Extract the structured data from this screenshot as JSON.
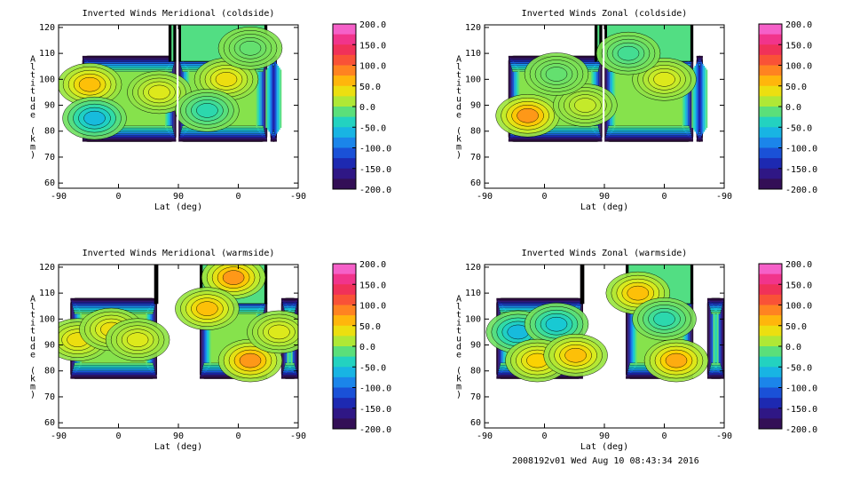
{
  "chart_data": [
    {
      "type": "heatmap",
      "title": "Inverted Winds Meridional (coldside)",
      "xlabel": "Lat (deg)",
      "ylabel": "Altitude (km)",
      "x_ticks": [
        "-90",
        "0",
        "90",
        "0",
        "-90"
      ],
      "y_ticks": [
        "60",
        "70",
        "80",
        "90",
        "100",
        "110",
        "120"
      ],
      "ylim": [
        58,
        121
      ],
      "colorbar_ticks": [
        "200.0",
        "150.0",
        "100.0",
        "50.0",
        "0.0",
        "-50.0",
        "-100.0",
        "-150.0",
        "-200.0"
      ],
      "color_range": [
        -200,
        200
      ],
      "data_extent": {
        "alt_min": 76,
        "alt_max": 109
      },
      "features": [
        {
          "lat_pos": 0.13,
          "alt": 98,
          "value": 60
        },
        {
          "lat_pos": 0.42,
          "alt": 95,
          "value": 30
        },
        {
          "lat_pos": 0.7,
          "alt": 100,
          "value": 40
        },
        {
          "lat_pos": 0.62,
          "alt": 88,
          "value": -30
        },
        {
          "lat_pos": 0.15,
          "alt": 85,
          "value": -60
        },
        {
          "lat_pos": 0.8,
          "alt": 112,
          "value": -10
        }
      ]
    },
    {
      "type": "heatmap",
      "title": "Inverted Winds Zonal (coldside)",
      "xlabel": "Lat (deg)",
      "ylabel": "Altitude (km)",
      "x_ticks": [
        "-90",
        "0",
        "90",
        "0",
        "-90"
      ],
      "y_ticks": [
        "60",
        "70",
        "80",
        "90",
        "100",
        "110",
        "120"
      ],
      "ylim": [
        58,
        121
      ],
      "colorbar_ticks": [
        "200.0",
        "150.0",
        "100.0",
        "50.0",
        "0.0",
        "-50.0",
        "-100.0",
        "-150.0",
        "-200.0"
      ],
      "color_range": [
        -200,
        200
      ],
      "data_extent": {
        "alt_min": 76,
        "alt_max": 109
      },
      "features": [
        {
          "lat_pos": 0.18,
          "alt": 86,
          "value": 80
        },
        {
          "lat_pos": 0.42,
          "alt": 90,
          "value": 20
        },
        {
          "lat_pos": 0.75,
          "alt": 100,
          "value": 30
        },
        {
          "lat_pos": 0.3,
          "alt": 102,
          "value": -10
        },
        {
          "lat_pos": 0.6,
          "alt": 110,
          "value": -20
        }
      ]
    },
    {
      "type": "heatmap",
      "title": "Inverted Winds Meridional (warmside)",
      "xlabel": "Lat (deg)",
      "ylabel": "Altitude (km)",
      "x_ticks": [
        "-90",
        "0",
        "90",
        "0",
        "-90"
      ],
      "y_ticks": [
        "60",
        "70",
        "80",
        "90",
        "100",
        "110",
        "120"
      ],
      "ylim": [
        58,
        121
      ],
      "colorbar_ticks": [
        "200.0",
        "150.0",
        "100.0",
        "50.0",
        "0.0",
        "-50.0",
        "-100.0",
        "-150.0",
        "-200.0"
      ],
      "color_range": [
        -200,
        200
      ],
      "data_extent": {
        "alt_min": 77,
        "alt_max": 108
      },
      "features": [
        {
          "lat_pos": 0.08,
          "alt": 92,
          "value": 40
        },
        {
          "lat_pos": 0.22,
          "alt": 96,
          "value": 40
        },
        {
          "lat_pos": 0.33,
          "alt": 92,
          "value": 30
        },
        {
          "lat_pos": 0.73,
          "alt": 116,
          "value": 80
        },
        {
          "lat_pos": 0.8,
          "alt": 84,
          "value": 80
        },
        {
          "lat_pos": 0.62,
          "alt": 104,
          "value": 60
        },
        {
          "lat_pos": 0.92,
          "alt": 95,
          "value": 30
        }
      ]
    },
    {
      "type": "heatmap",
      "title": "Inverted Winds Zonal (warmside)",
      "xlabel": "Lat (deg)",
      "ylabel": "Altitude (km)",
      "x_ticks": [
        "-90",
        "0",
        "90",
        "0",
        "-90"
      ],
      "y_ticks": [
        "60",
        "70",
        "80",
        "90",
        "100",
        "110",
        "120"
      ],
      "ylim": [
        58,
        121
      ],
      "colorbar_ticks": [
        "200.0",
        "150.0",
        "100.0",
        "50.0",
        "0.0",
        "-50.0",
        "-100.0",
        "-150.0",
        "-200.0"
      ],
      "color_range": [
        -200,
        200
      ],
      "data_extent": {
        "alt_min": 77,
        "alt_max": 108
      },
      "features": [
        {
          "lat_pos": 0.14,
          "alt": 95,
          "value": -60
        },
        {
          "lat_pos": 0.3,
          "alt": 98,
          "value": -50
        },
        {
          "lat_pos": 0.22,
          "alt": 84,
          "value": 50
        },
        {
          "lat_pos": 0.38,
          "alt": 86,
          "value": 60
        },
        {
          "lat_pos": 0.64,
          "alt": 110,
          "value": 60
        },
        {
          "lat_pos": 0.8,
          "alt": 84,
          "value": 70
        },
        {
          "lat_pos": 0.75,
          "alt": 100,
          "value": -30
        }
      ]
    }
  ],
  "footer": "2008192v01 Wed Aug 10 08:43:34 2016"
}
